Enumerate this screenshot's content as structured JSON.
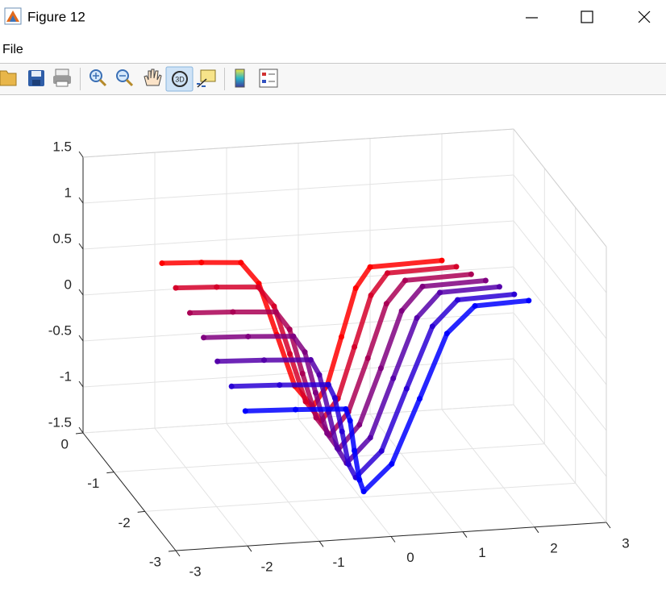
{
  "window": {
    "title": "Figure 12",
    "menu": [
      "File"
    ]
  },
  "chart_data": {
    "type": "scatter3d",
    "xlim": [
      -3,
      3
    ],
    "ylim": [
      -3,
      0
    ],
    "zlim": [
      -1.5,
      1.5
    ],
    "xticks": [
      -3,
      -2,
      -1,
      0,
      1,
      2,
      3
    ],
    "yticks": [
      -3,
      -2,
      -1,
      0
    ],
    "zticks": [
      -1.5,
      -1,
      -0.5,
      0,
      0.5,
      1,
      1.5
    ],
    "grid": true,
    "series": [
      {
        "color": "#ff0000",
        "y": 0,
        "x": [
          -1.9,
          -1.35,
          -0.8,
          -0.55,
          -0.3,
          -0.05,
          0.2,
          0.4,
          0.6,
          0.8,
          1.0,
          2.0
        ],
        "z": [
          0.29,
          0.27,
          0.24,
          0.0,
          -0.57,
          -1.14,
          -1.38,
          -1.16,
          -0.64,
          -0.12,
          0.1,
          0.12
        ]
      },
      {
        "color": "#d5002a",
        "y": -0.33,
        "x": [
          -1.85,
          -1.28,
          -0.7,
          -0.48,
          -0.26,
          -0.04,
          0.18,
          0.41,
          0.64,
          0.87,
          1.1,
          2.06
        ],
        "z": [
          0.16,
          0.14,
          0.11,
          -0.11,
          -0.64,
          -1.17,
          -1.39,
          -1.16,
          -0.61,
          -0.06,
          0.17,
          0.19
        ]
      },
      {
        "color": "#aa0055",
        "y": -0.67,
        "x": [
          -1.8,
          -1.2,
          -0.6,
          -0.41,
          -0.23,
          -0.04,
          0.15,
          0.41,
          0.68,
          0.94,
          1.2,
          2.12
        ],
        "z": [
          0.03,
          0.01,
          -0.02,
          -0.22,
          -0.71,
          -1.2,
          -1.4,
          -1.16,
          -0.59,
          -0.01,
          0.23,
          0.25
        ]
      },
      {
        "color": "#800080",
        "y": -1,
        "x": [
          -1.75,
          -1.13,
          -0.5,
          -0.34,
          -0.19,
          -0.03,
          0.13,
          0.42,
          0.72,
          1.01,
          1.3,
          2.18
        ],
        "z": [
          -0.1,
          -0.12,
          -0.15,
          -0.33,
          -0.78,
          -1.23,
          -1.41,
          -1.16,
          -0.56,
          0.05,
          0.3,
          0.32
        ]
      },
      {
        "color": "#5500aa",
        "y": -1.33,
        "x": [
          -1.7,
          -1.05,
          -0.4,
          -0.28,
          -0.15,
          -0.03,
          0.1,
          0.43,
          0.75,
          1.08,
          1.4,
          2.23
        ],
        "z": [
          -0.22,
          -0.24,
          -0.27,
          -0.44,
          -0.85,
          -1.25,
          -1.42,
          -1.16,
          -0.53,
          0.11,
          0.37,
          0.39
        ]
      },
      {
        "color": "#2a00d5",
        "y": -1.67,
        "x": [
          -1.65,
          -0.98,
          -0.3,
          -0.21,
          -0.11,
          -0.02,
          0.08,
          0.44,
          0.79,
          1.15,
          1.5,
          2.29
        ],
        "z": [
          -0.35,
          -0.37,
          -0.4,
          -0.55,
          -0.92,
          -1.28,
          -1.43,
          -1.16,
          -0.5,
          0.16,
          0.43,
          0.45
        ]
      },
      {
        "color": "#0000ff",
        "y": -2,
        "x": [
          -1.6,
          -0.9,
          -0.2,
          -0.14,
          -0.08,
          -0.01,
          0.05,
          0.44,
          0.83,
          1.21,
          1.6,
          2.35
        ],
        "z": [
          -0.48,
          -0.5,
          -0.53,
          -0.66,
          -0.99,
          -1.31,
          -1.44,
          -1.16,
          -0.47,
          0.22,
          0.5,
          0.52
        ]
      }
    ]
  }
}
